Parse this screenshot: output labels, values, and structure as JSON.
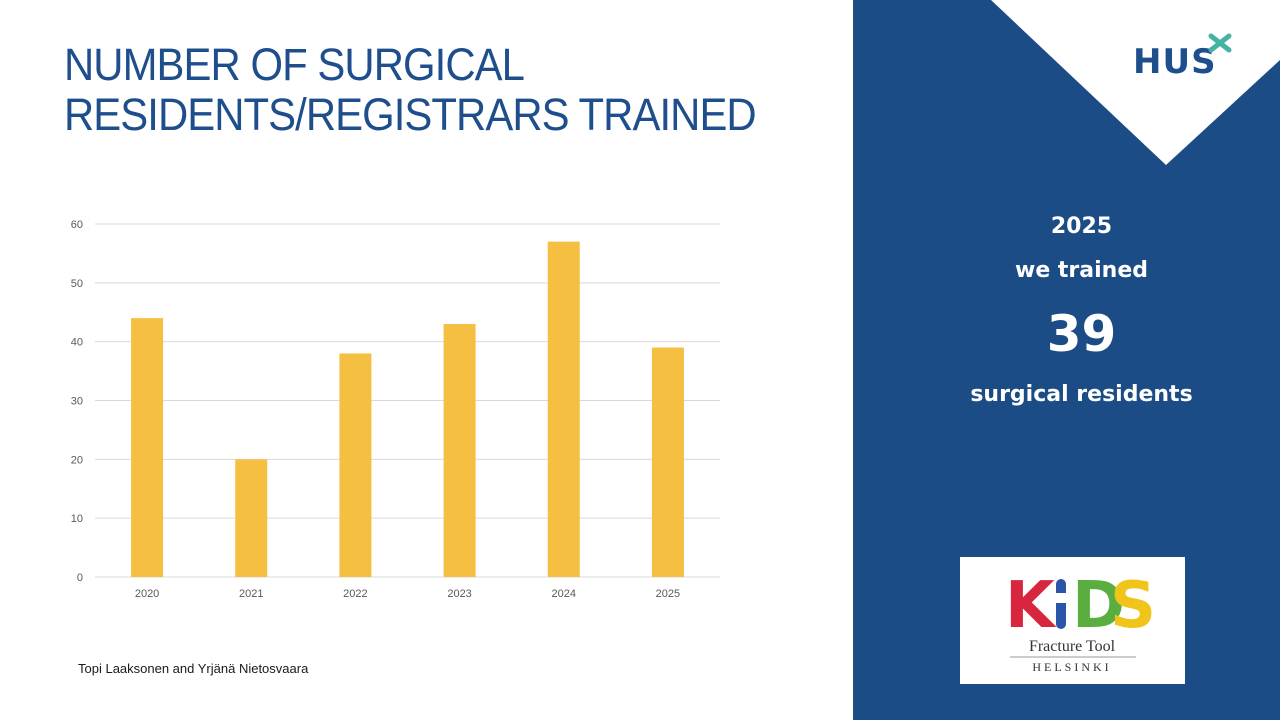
{
  "slide": {
    "title_line1": "NUMBER OF SURGICAL",
    "title_line2": "RESIDENTS/REGISTRARS TRAINED",
    "author": "Topi Laaksonen and Yrjänä Nietosvaara"
  },
  "chart_data": {
    "type": "bar",
    "categories": [
      "2020",
      "2021",
      "2022",
      "2023",
      "2024",
      "2025"
    ],
    "values": [
      44,
      20,
      38,
      43,
      57,
      39
    ],
    "ylim": [
      0,
      60
    ],
    "yticks": [
      0,
      10,
      20,
      30,
      40,
      50,
      60
    ],
    "grid": true,
    "bar_color": "#f5bf42",
    "grid_color": "#d9d9d9"
  },
  "panel": {
    "year": "2025",
    "line1": "we trained",
    "number": "39",
    "line2": "surgical residents",
    "background_color": "#1c4c86"
  },
  "logos": {
    "hus_text": "HUS",
    "kids_letters": [
      "K",
      "I",
      "D",
      "S"
    ],
    "kids_subtitle": "Fracture Tool",
    "kids_city": "HELSINKI"
  },
  "colors": {
    "title": "#1f4e8c",
    "hus_cross": "#45b3a4"
  }
}
